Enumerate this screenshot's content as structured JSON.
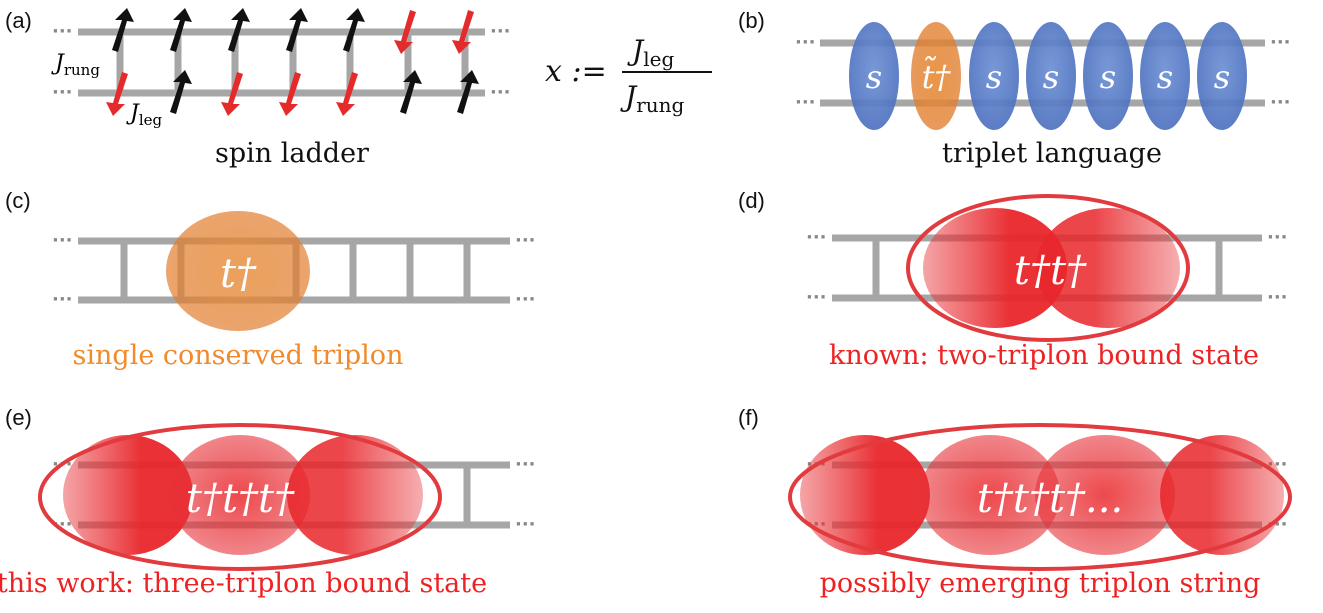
{
  "panels": {
    "a": {
      "label": "(a)",
      "caption": "spin ladder",
      "j_rung": "J",
      "j_rung_sub": "rung",
      "j_leg": "J",
      "j_leg_sub": "leg",
      "ratio_lhs": "x :=",
      "ratio_num": "J",
      "ratio_num_sub": "leg",
      "ratio_den": "J",
      "ratio_den_sub": "rung"
    },
    "b": {
      "label": "(b)",
      "caption": "triplet language",
      "singlet": "s",
      "triplet": "t̃†"
    },
    "c": {
      "label": "(c)",
      "caption": "single conserved triplon",
      "op": "t†"
    },
    "d": {
      "label": "(d)",
      "caption": "known: two-triplon bound state",
      "op": "t†t†"
    },
    "e": {
      "label": "(e)",
      "caption": "this work: three-triplon bound state",
      "op": "t†t†t†"
    },
    "f": {
      "label": "(f)",
      "caption": "possibly emerging triplon string",
      "op": "t†t†t†..."
    }
  },
  "colors": {
    "ladder": "#a6a6a6",
    "orange": "#e68a3c",
    "orange_caption": "#f08a2a",
    "red": "#e8262b",
    "red_caption": "#ee2222",
    "blue": "#5b80c8",
    "arrow_dark": "#111111"
  }
}
